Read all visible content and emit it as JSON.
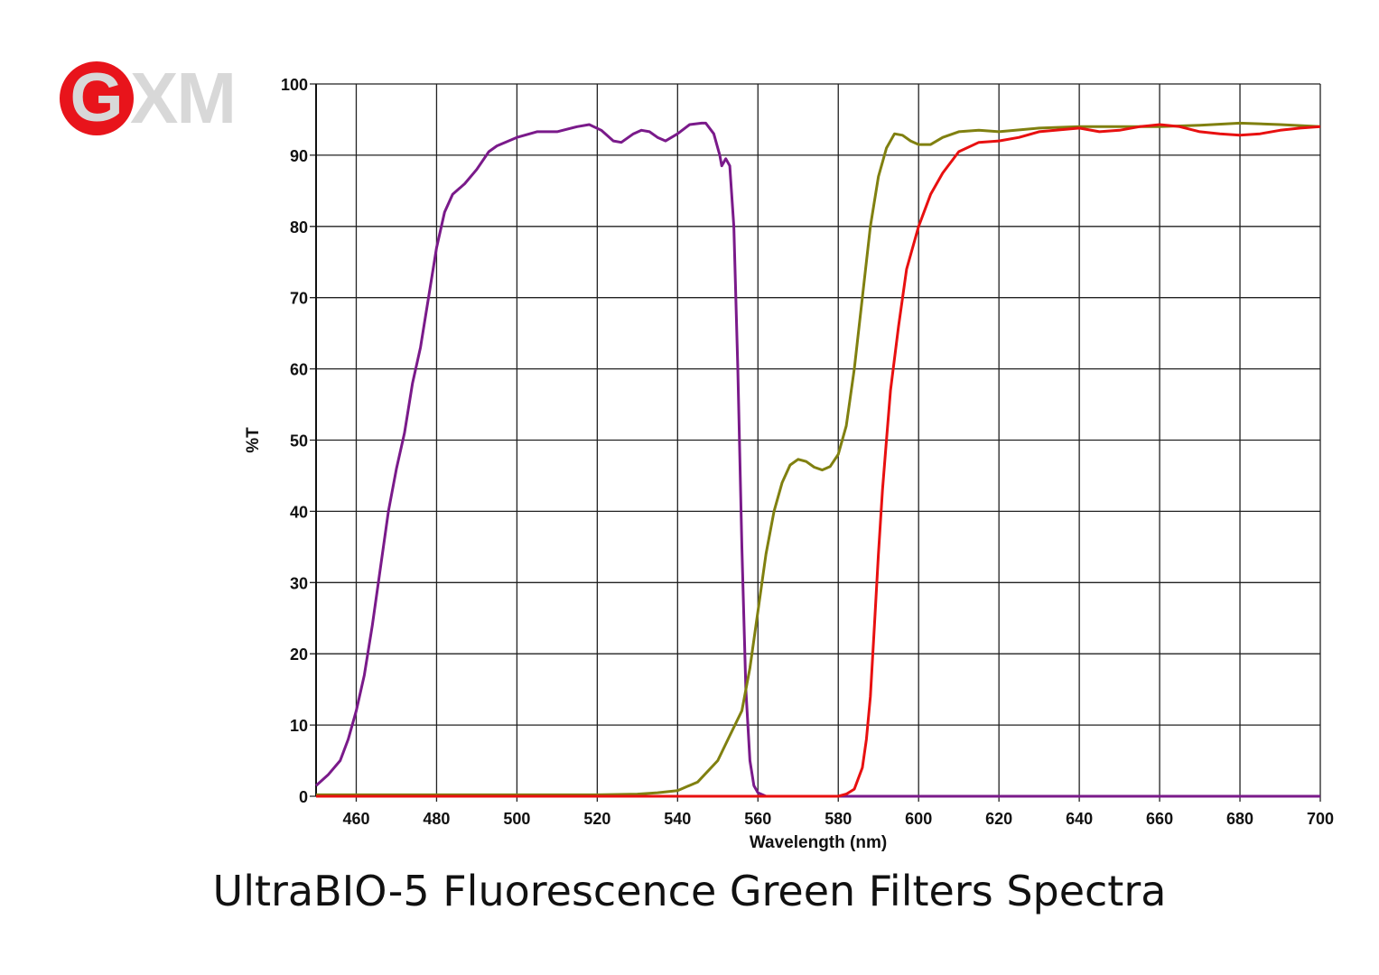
{
  "logo": {
    "text": "GXM",
    "accent": "#e8141b",
    "grey": "#d8d8d8"
  },
  "title": "UltraBIO-5 Fluorescence Green Filters Spectra",
  "chart_data": {
    "type": "line",
    "title": "UltraBIO-5 Fluorescence Green Filters Spectra",
    "xlabel": "Wavelength (nm)",
    "ylabel": "%T",
    "xlim": [
      450,
      700
    ],
    "ylim": [
      0,
      100
    ],
    "xticks": [
      460,
      480,
      500,
      520,
      540,
      560,
      580,
      600,
      620,
      640,
      660,
      680,
      700
    ],
    "yticks": [
      0,
      10,
      20,
      30,
      40,
      50,
      60,
      70,
      80,
      90,
      100
    ],
    "grid": true,
    "series": [
      {
        "color": "#7a1a8a",
        "x": [
          450,
          453,
          456,
          458,
          460,
          462,
          464,
          466,
          468,
          470,
          472,
          474,
          476,
          478,
          480,
          482,
          484,
          487,
          490,
          493,
          495,
          500,
          505,
          510,
          515,
          518,
          521,
          524,
          526,
          529,
          531,
          533,
          535,
          537,
          540,
          543,
          546,
          547,
          549,
          550.5,
          551,
          552,
          553,
          554,
          555,
          556,
          557,
          558,
          559,
          560,
          562,
          600,
          650,
          700
        ],
        "y": [
          1.5,
          3,
          5,
          8,
          12,
          17,
          24,
          32,
          40,
          46,
          51,
          58,
          63,
          70,
          77,
          82,
          84.5,
          86,
          88,
          90.5,
          91.3,
          92.5,
          93.3,
          93.3,
          94,
          94.3,
          93.5,
          92,
          91.8,
          93,
          93.5,
          93.3,
          92.5,
          92,
          93,
          94.3,
          94.5,
          94.5,
          93,
          90,
          88.5,
          89.5,
          88.5,
          80,
          60,
          35,
          15,
          5,
          1.5,
          0.5,
          0,
          0,
          0,
          0
        ]
      },
      {
        "color": "#808010",
        "x": [
          450,
          500,
          520,
          530,
          535,
          540,
          545,
          550,
          553,
          556,
          558,
          560,
          562,
          564,
          566,
          568,
          570,
          572,
          574,
          576,
          578,
          580,
          582,
          584,
          586,
          588,
          590,
          592,
          594,
          596,
          598,
          600,
          603,
          606,
          610,
          615,
          620,
          630,
          640,
          650,
          660,
          670,
          680,
          690,
          700
        ],
        "y": [
          0.2,
          0.2,
          0.2,
          0.3,
          0.5,
          0.8,
          2,
          5,
          8.5,
          12,
          18,
          26,
          34,
          40,
          44,
          46.5,
          47.3,
          47,
          46.2,
          45.8,
          46.3,
          48,
          52,
          60,
          70,
          80,
          87,
          91,
          93,
          92.8,
          92,
          91.5,
          91.5,
          92.5,
          93.3,
          93.5,
          93.3,
          93.8,
          94,
          94,
          94,
          94.2,
          94.5,
          94.3,
          94
        ]
      },
      {
        "color": "#e81010",
        "x": [
          450,
          580,
          582,
          584,
          586,
          587,
          588,
          589,
          590,
          591,
          592,
          593,
          595,
          597,
          600,
          603,
          606,
          610,
          615,
          620,
          625,
          630,
          640,
          645,
          650,
          655,
          660,
          665,
          670,
          675,
          680,
          685,
          690,
          695,
          700
        ],
        "y": [
          0,
          0,
          0.3,
          1,
          4,
          8,
          14,
          24,
          34,
          43,
          50,
          57,
          66,
          74,
          80,
          84.5,
          87.5,
          90.5,
          91.8,
          92,
          92.5,
          93.3,
          93.8,
          93.3,
          93.5,
          94,
          94.3,
          94,
          93.3,
          93,
          92.8,
          93,
          93.5,
          93.8,
          94
        ]
      }
    ]
  }
}
